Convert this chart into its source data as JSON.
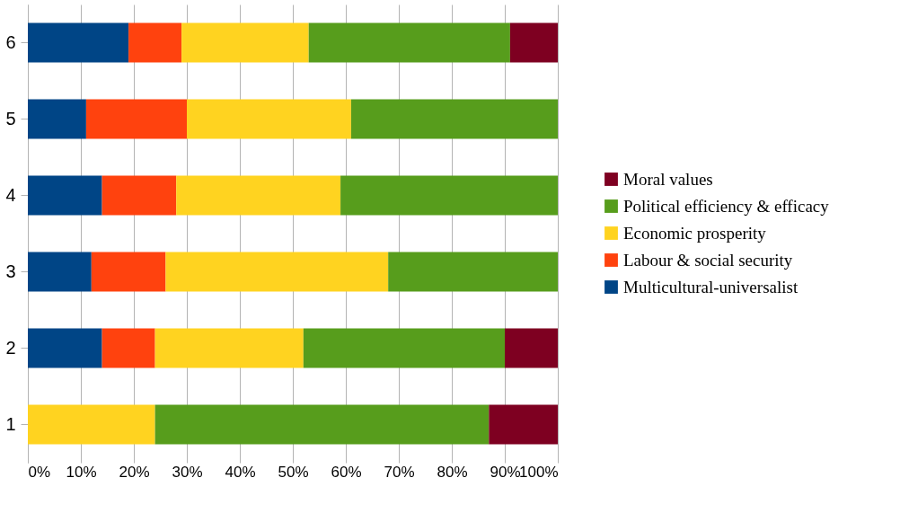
{
  "chart_data": {
    "type": "bar",
    "orientation": "horizontal",
    "stacked": true,
    "categories": [
      "6",
      "5",
      "4",
      "3",
      "2",
      "1"
    ],
    "series": [
      {
        "name": "Multicultural-universalist",
        "color": "#004586",
        "values": [
          19,
          11,
          14,
          12,
          14,
          0
        ]
      },
      {
        "name": "Labour & social security",
        "color": "#ff420e",
        "values": [
          10,
          19,
          14,
          14,
          10,
          0
        ]
      },
      {
        "name": "Economic prosperity",
        "color": "#ffd320",
        "values": [
          24,
          31,
          31,
          42,
          28,
          24
        ]
      },
      {
        "name": "Political efficiency & efficacy",
        "color": "#579d1c",
        "values": [
          38,
          39,
          41,
          32,
          38,
          63
        ]
      },
      {
        "name": "Moral values",
        "color": "#7e0021",
        "values": [
          9,
          0,
          0,
          0,
          10,
          13
        ]
      }
    ],
    "xlim": [
      0,
      100
    ],
    "xticks": [
      {
        "value": 0,
        "label": "0%"
      },
      {
        "value": 10,
        "label": "10%"
      },
      {
        "value": 20,
        "label": "20%"
      },
      {
        "value": 30,
        "label": "30%"
      },
      {
        "value": 40,
        "label": "40%"
      },
      {
        "value": 50,
        "label": "50%"
      },
      {
        "value": 60,
        "label": "60%"
      },
      {
        "value": 70,
        "label": "70%"
      },
      {
        "value": 80,
        "label": "80%"
      },
      {
        "value": 90,
        "label": "90%"
      },
      {
        "value": 100,
        "label": "100%"
      }
    ],
    "grid": "x",
    "legend": "right"
  }
}
